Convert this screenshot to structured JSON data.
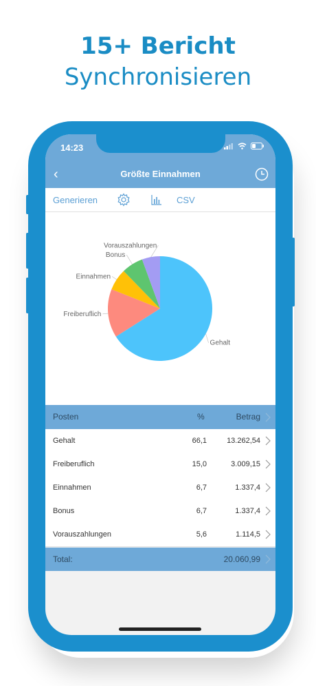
{
  "headline": {
    "line1": "15+ Bericht",
    "line2": "Synchronisieren"
  },
  "status": {
    "time": "14:23"
  },
  "nav": {
    "back": "‹",
    "title": "Größte Einnahmen"
  },
  "toolbar": {
    "generate": "Generieren",
    "csv": "CSV"
  },
  "colors": {
    "accent": "#1b8fcd",
    "header": "#6ea9d8",
    "link": "#5b9fd4"
  },
  "chart_data": {
    "type": "pie",
    "categories": [
      "Gehalt",
      "Freiberuflich",
      "Einnahmen",
      "Bonus",
      "Vorauszahlungen"
    ],
    "values": [
      66.1,
      15.0,
      6.7,
      6.7,
      5.6
    ],
    "colors": [
      "#4dc4fb",
      "#fd8a7e",
      "#ffc107",
      "#5ec56f",
      "#a39cf3"
    ],
    "title": "",
    "legend": "none"
  },
  "table": {
    "headers": {
      "item": "Posten",
      "pct": "%",
      "amount": "Betrag"
    },
    "rows": [
      {
        "name": "Gehalt",
        "pct": "66,1",
        "amount": "13.262,54"
      },
      {
        "name": "Freiberuflich",
        "pct": "15,0",
        "amount": "3.009,15"
      },
      {
        "name": "Einnahmen",
        "pct": "6,7",
        "amount": "1.337,4"
      },
      {
        "name": "Bonus",
        "pct": "6,7",
        "amount": "1.337,4"
      },
      {
        "name": "Vorauszahlungen",
        "pct": "5,6",
        "amount": "1.114,5"
      }
    ],
    "total_label": "Total:",
    "total_value": "20.060,99"
  }
}
